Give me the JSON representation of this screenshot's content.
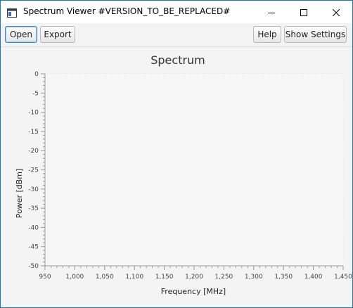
{
  "window": {
    "title": "Spectrum Viewer #VERSION_TO_BE_REPLACED#",
    "icon": "app-window-icon",
    "controls": [
      "minimize-icon",
      "maximize-icon",
      "close-icon"
    ]
  },
  "toolbar": {
    "open_label": "Open",
    "export_label": "Export",
    "help_label": "Help",
    "settings_label": "Show Settings"
  },
  "chart_data": {
    "type": "line",
    "title": "Spectrum",
    "xlabel": "Frequency [MHz]",
    "ylabel": "Power [dBm]",
    "xlim": [
      950,
      1450
    ],
    "ylim": [
      -50,
      0
    ],
    "x_ticks": [
      950,
      1000,
      1050,
      1100,
      1150,
      1200,
      1250,
      1300,
      1350,
      1400,
      1450
    ],
    "x_tick_labels": [
      "950",
      "1,000",
      "1,050",
      "1,100",
      "1,150",
      "1,200",
      "1,250",
      "1,300",
      "1,350",
      "1,400",
      "1,450"
    ],
    "y_ticks": [
      0,
      -5,
      -10,
      -15,
      -20,
      -25,
      -30,
      -35,
      -40,
      -45,
      -50
    ],
    "y_tick_labels": [
      "0",
      "-5",
      "-10",
      "-15",
      "-20",
      "-25",
      "-30",
      "-35",
      "-40",
      "-45",
      "-50"
    ],
    "series": [],
    "grid": true,
    "grid_color": "#e3e3e3",
    "axis_color": "#9a9a9a"
  }
}
